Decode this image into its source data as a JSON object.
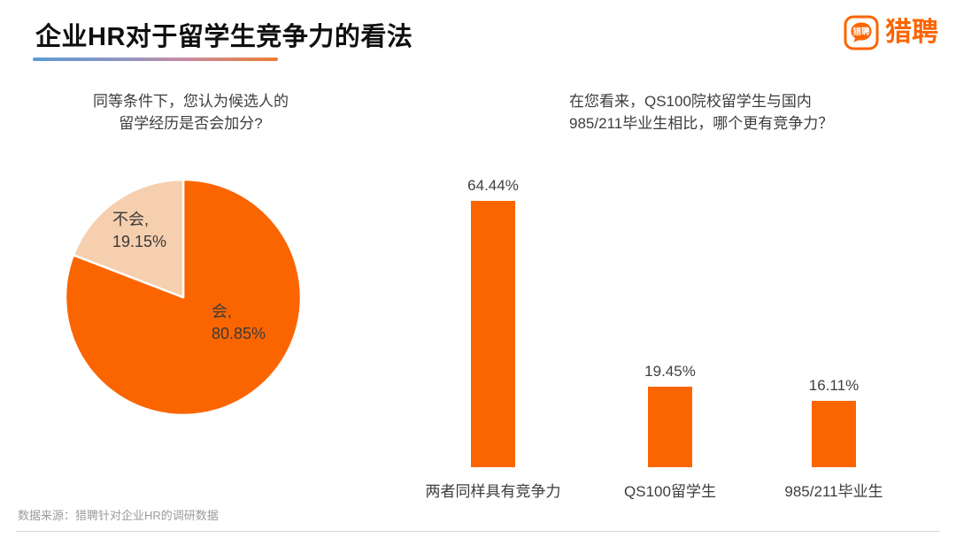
{
  "header": {
    "title": "企业HR对于留学生竞争力的看法",
    "accent_gradient": [
      "#5B9BD5",
      "#ED7D31"
    ]
  },
  "logo": {
    "bubble_text": "猎聘",
    "wordmark": "猎聘",
    "brand_color": "#FB6500"
  },
  "chart_data": [
    {
      "type": "pie",
      "title": "同等条件下，您认为候选人的留学经历是否会加分?",
      "title_lines": [
        "同等条件下，您认为候选人的",
        "留学经历是否会加分?"
      ],
      "labels": [
        "会",
        "不会"
      ],
      "values": [
        80.85,
        19.15
      ],
      "colors": [
        "#FB6500",
        "#F6CFAE"
      ],
      "start_angle": "top",
      "direction": "clockwise",
      "slice_labels": [
        {
          "name": "会,",
          "value": "80.85%"
        },
        {
          "name": "不会,",
          "value": "19.15%"
        }
      ]
    },
    {
      "type": "bar",
      "title": "在您看来，QS100院校留学生与国内985/211毕业生相比，哪个更有竞争力？",
      "title_lines": [
        "在您看来，QS100院校留学生与国内",
        "985/211毕业生相比，哪个更有竞争力？"
      ],
      "categories": [
        "两者同样具有竞争力",
        "QS100留学生",
        "985/211毕业生"
      ],
      "values": [
        64.44,
        19.45,
        16.11
      ],
      "value_labels": [
        "64.44%",
        "19.45%",
        "16.11%"
      ],
      "bar_color": "#FB6500",
      "ylim": [
        0,
        70
      ],
      "grid": false,
      "legend": false
    }
  ],
  "footer": {
    "source": "数据来源：猎聘针对企业HR的调研数据"
  }
}
